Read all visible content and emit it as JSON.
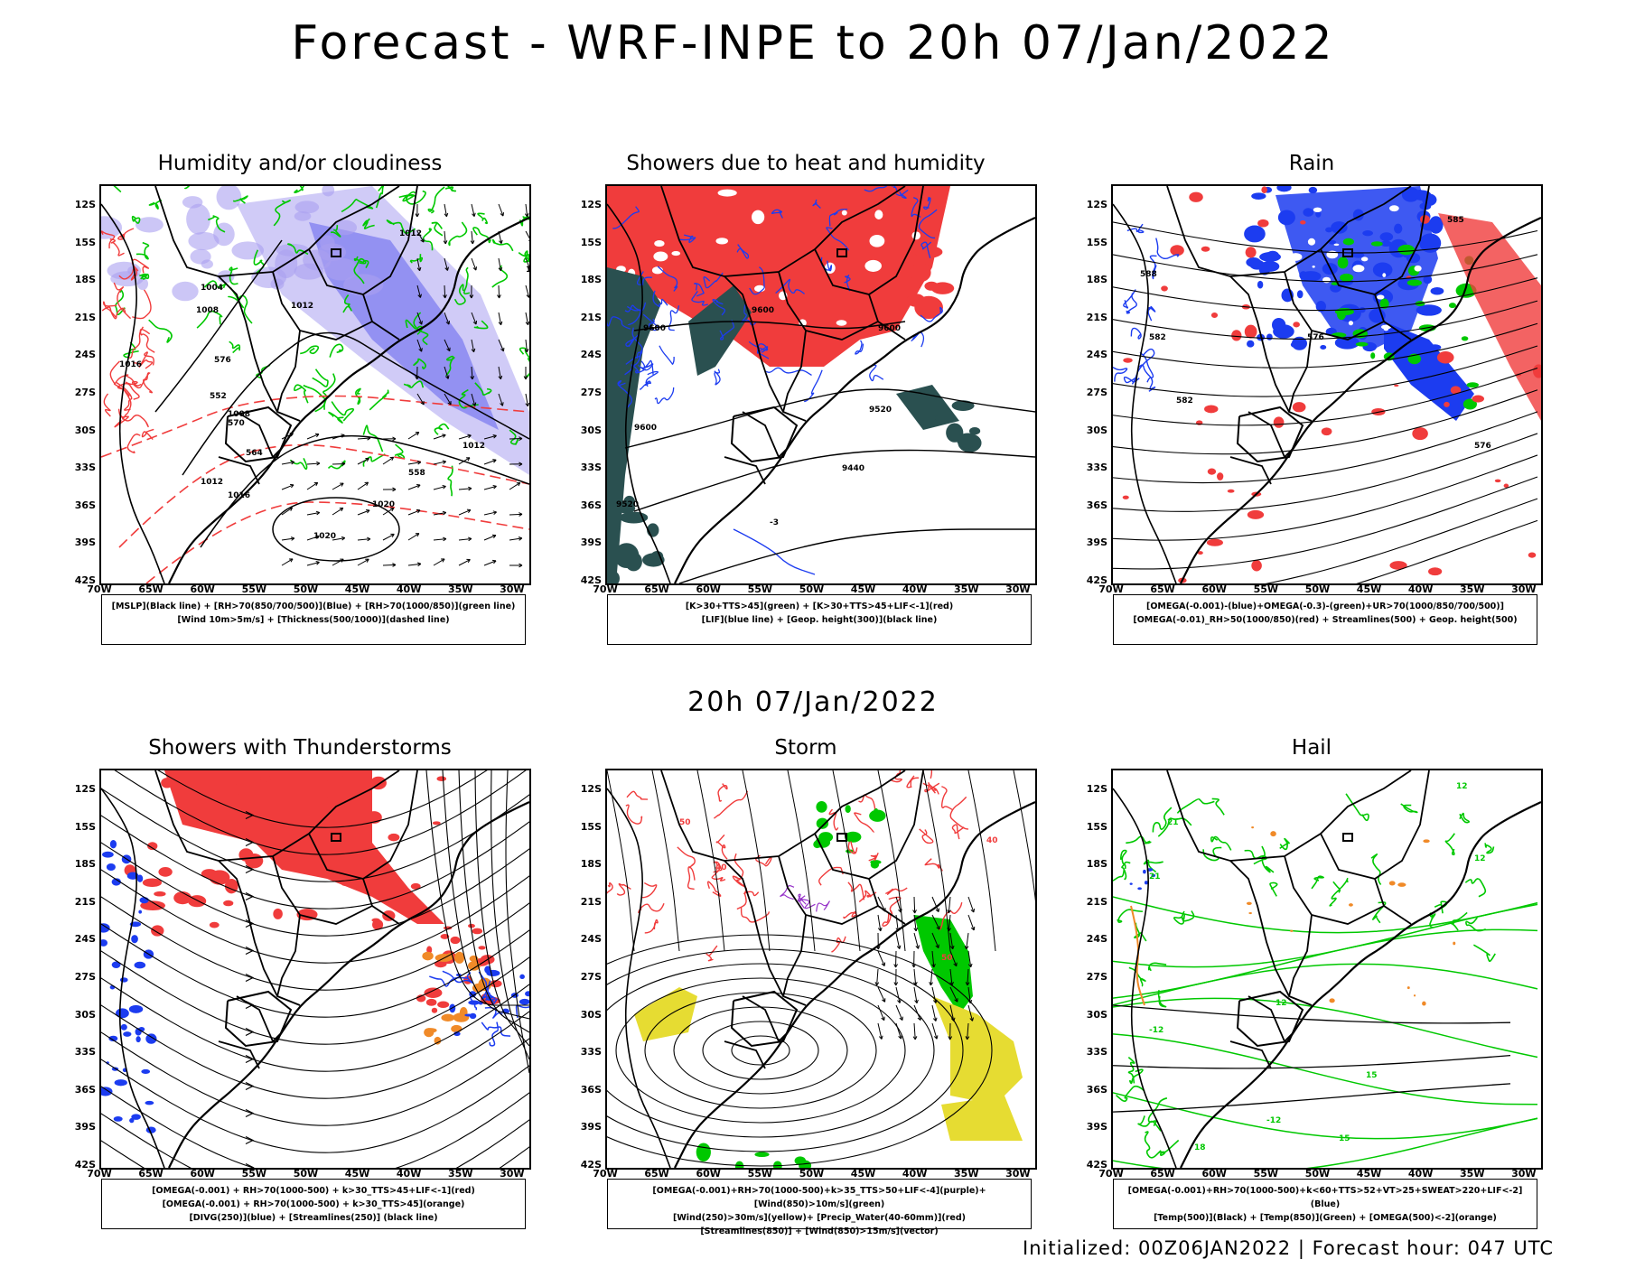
{
  "title": "Forecast - WRF-INPE to 20h 07/Jan/2022",
  "subtitle": "20h 07/Jan/2022",
  "footer": "Initialized: 00Z06JAN2022 | Forecast hour: 047 UTC",
  "axes": {
    "lat_labels": [
      "12S",
      "15S",
      "18S",
      "21S",
      "24S",
      "27S",
      "30S",
      "33S",
      "36S",
      "39S",
      "42S"
    ],
    "lon_labels": [
      "70W",
      "65W",
      "60W",
      "55W",
      "50W",
      "45W",
      "40W",
      "35W",
      "30W"
    ]
  },
  "colors": {
    "red": "#f03c3c",
    "blue": "#1c3cf0",
    "green": "#00c800",
    "dark_green": "#2a5050",
    "yellow": "#e6dc32",
    "orange": "#f08a28",
    "purple": "#9632c8",
    "lavender": "#aaa0f0"
  },
  "panels": [
    {
      "title": "Humidity and/or cloudiness",
      "legend": [
        "[MSLP](Black line) + [RH>70(850/700/500)](Blue) + [RH>70(1000/850)](green line)",
        "[Wind 10m>5m/s] + [Thickness(500/1000)](dashed line)"
      ],
      "contour_labels": [
        "1012",
        "1004",
        "1008",
        "1012",
        "1016",
        "1008",
        "1012",
        "1016",
        "1020",
        "1020",
        "576",
        "570",
        "564",
        "558",
        "552",
        "1016",
        "1012"
      ]
    },
    {
      "title": "Showers due to heat and humidity",
      "legend": [
        "[K>30+TTS>45](green) + [K>30+TTS>45+LIF<-1](red)",
        "[LIF](blue line) + [Geop. height(300)](black line)"
      ],
      "contour_labels": [
        "9600",
        "9600",
        "9600",
        "9600",
        "9520",
        "9440",
        "9520",
        "-3"
      ]
    },
    {
      "title": "Rain",
      "legend": [
        "[OMEGA(-0.001)-(blue)+OMEGA(-0.3)-(green)+UR>70(1000/850/700/500)]",
        "[OMEGA(-0.01)_RH>50(1000/850)(red) + Streamlines(500) + Geop. height(500)"
      ],
      "contour_labels": [
        "588",
        "582",
        "576",
        "582",
        "576",
        "585"
      ]
    },
    {
      "title": "Showers with Thunderstorms",
      "legend": [
        "[OMEGA(-0.001) + RH>70(1000-500) + k>30_TTS>45+LIF<-1](red)",
        "[OMEGA(-0.001) + RH>70(1000-500) + k>30_TTS>45](orange)",
        "[DIVG(250)](blue) + [Streamlines(250)] (black line)"
      ],
      "contour_labels": []
    },
    {
      "title": "Storm",
      "legend": [
        "[OMEGA(-0.001)+RH>70(1000-500)+k>35_TTS>50+LIF<-4](purple)+[Wind(850)>10m/s](green)",
        "[Wind(250)>30m/s](yellow)+ [Precip_Water(40-60mm)](red)",
        "[Streamlines(850)] + [Wind(850)>15m/s](vector)"
      ],
      "contour_labels": [
        "50",
        "40",
        "40",
        "50"
      ]
    },
    {
      "title": "Hail",
      "legend": [
        "[OMEGA(-0.001)+RH>70(1000-500)+k<60+TTS>52+VT>25+SWEAT>220+LIF<-2](Blue)",
        "[Temp(500)](Black) + [Temp(850)](Green) + [OMEGA(500)<-2](orange)"
      ],
      "contour_labels": [
        "21",
        "21",
        "12",
        "12",
        "-12",
        "15",
        "12",
        "18",
        "-12",
        "15"
      ]
    }
  ]
}
